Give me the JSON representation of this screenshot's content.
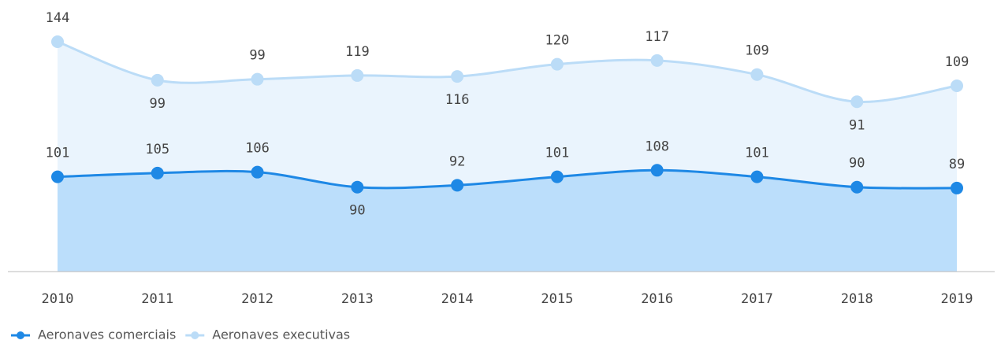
{
  "chart_data": {
    "type": "stacked-area",
    "categories": [
      "2010",
      "2011",
      "2012",
      "2013",
      "2014",
      "2015",
      "2016",
      "2017",
      "2018",
      "2019"
    ],
    "series": [
      {
        "name": "Aeronaves comerciais",
        "color": "#1e88e5",
        "fill": "#bbdefb",
        "values": [
          101,
          105,
          106,
          90,
          92,
          101,
          108,
          101,
          90,
          89
        ]
      },
      {
        "name": "Aeronaves executivas",
        "color": "#bbdcf7",
        "fill": "#eaf4fd",
        "values": [
          144,
          99,
          99,
          119,
          116,
          120,
          117,
          109,
          91,
          109
        ]
      }
    ],
    "legend": "bottom-left"
  }
}
